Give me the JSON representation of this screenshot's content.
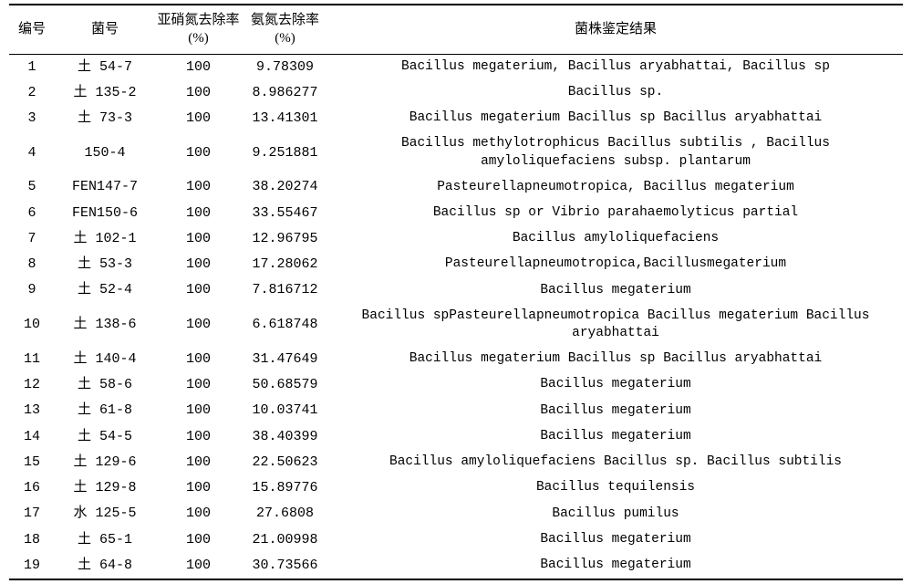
{
  "table": {
    "headers": {
      "idx": "编号",
      "strain": "菌号",
      "rate1": "亚硝氮去除率(%)",
      "rate2": "氨氮去除率(%)",
      "result": "菌株鉴定结果"
    },
    "rows": [
      {
        "idx": "1",
        "strain": "土 54-7",
        "r1": "100",
        "r2": "9.78309",
        "result": "Bacillus megaterium, Bacillus aryabhattai, Bacillus sp"
      },
      {
        "idx": "2",
        "strain": "土 135-2",
        "r1": "100",
        "r2": "8.986277",
        "result": "Bacillus sp."
      },
      {
        "idx": "3",
        "strain": "土 73-3",
        "r1": "100",
        "r2": "13.41301",
        "result": "Bacillus megaterium  Bacillus sp Bacillus aryabhattai"
      },
      {
        "idx": "4",
        "strain": "150-4",
        "r1": "100",
        "r2": "9.251881",
        "result": "Bacillus methylotrophicus  Bacillus subtilis , Bacillus amyloliquefaciens subsp. plantarum"
      },
      {
        "idx": "5",
        "strain": "FEN147-7",
        "r1": "100",
        "r2": "38.20274",
        "result": "Pasteurellapneumotropica, Bacillus megaterium"
      },
      {
        "idx": "6",
        "strain": "FEN150-6",
        "r1": "100",
        "r2": "33.55467",
        "result": "Bacillus sp or Vibrio parahaemolyticus partial"
      },
      {
        "idx": "7",
        "strain": "土 102-1",
        "r1": "100",
        "r2": "12.96795",
        "result": "Bacillus amyloliquefaciens"
      },
      {
        "idx": "8",
        "strain": "土 53-3",
        "r1": "100",
        "r2": "17.28062",
        "result": "Pasteurellapneumotropica,Bacillusmegaterium"
      },
      {
        "idx": "9",
        "strain": "土 52-4",
        "r1": "100",
        "r2": "7.816712",
        "result": "Bacillus megaterium"
      },
      {
        "idx": "10",
        "strain": "土 138-6",
        "r1": "100",
        "r2": "6.618748",
        "result": "Bacillus spPasteurellapneumotropica  Bacillus megaterium Bacillus aryabhattai"
      },
      {
        "idx": "11",
        "strain": "土 140-4",
        "r1": "100",
        "r2": "31.47649",
        "result": "Bacillus megaterium  Bacillus sp Bacillus aryabhattai"
      },
      {
        "idx": "12",
        "strain": "土 58-6",
        "r1": "100",
        "r2": "50.68579",
        "result": "Bacillus megaterium"
      },
      {
        "idx": "13",
        "strain": "土 61-8",
        "r1": "100",
        "r2": "10.03741",
        "result": "Bacillus megaterium"
      },
      {
        "idx": "14",
        "strain": "土 54-5",
        "r1": "100",
        "r2": "38.40399",
        "result": "Bacillus megaterium"
      },
      {
        "idx": "15",
        "strain": "土 129-6",
        "r1": "100",
        "r2": "22.50623",
        "result": "Bacillus amyloliquefaciens  Bacillus sp. Bacillus subtilis"
      },
      {
        "idx": "16",
        "strain": "土 129-8",
        "r1": "100",
        "r2": "15.89776",
        "result": "Bacillus tequilensis"
      },
      {
        "idx": "17",
        "strain": "水 125-5",
        "r1": "100",
        "r2": "27.6808",
        "result": "Bacillus pumilus"
      },
      {
        "idx": "18",
        "strain": "土 65-1",
        "r1": "100",
        "r2": "21.00998",
        "result": "Bacillus megaterium"
      },
      {
        "idx": "19",
        "strain": "土 64-8",
        "r1": "100",
        "r2": "30.73566",
        "result": "Bacillus megaterium"
      }
    ]
  }
}
